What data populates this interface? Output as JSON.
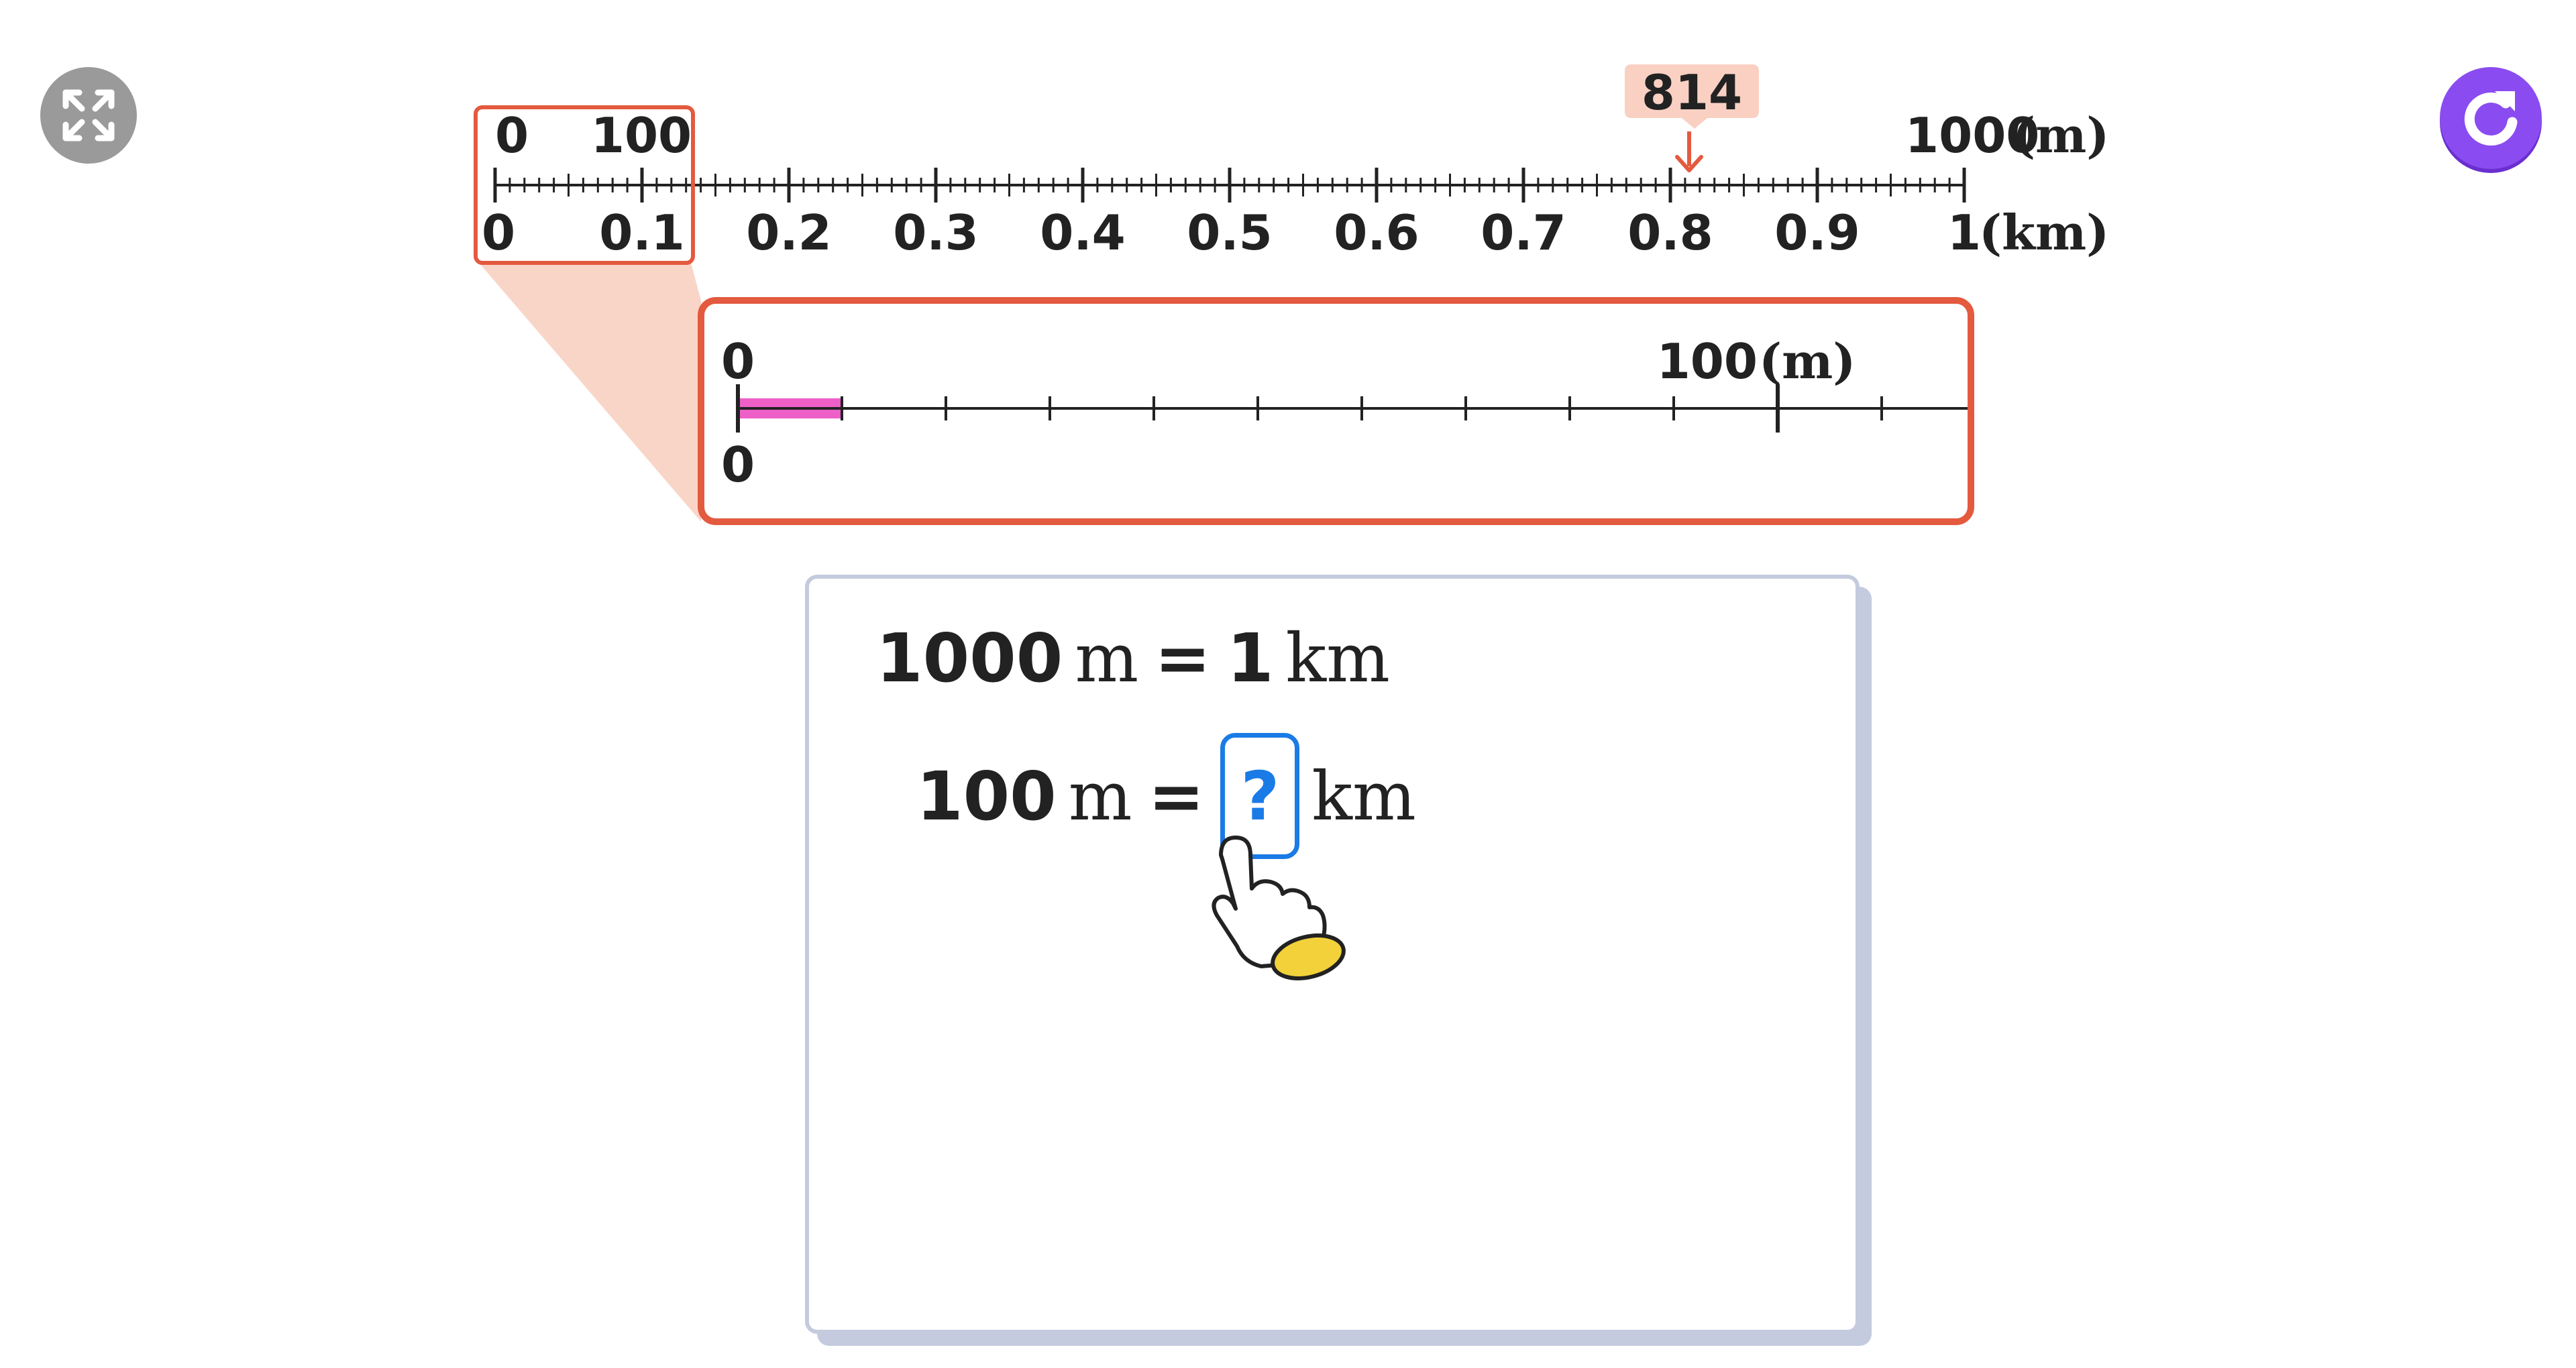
{
  "toolbar": {
    "expand_icon": "expand-icon",
    "refresh_icon": "refresh-icon"
  },
  "main_ruler": {
    "m_start": "0",
    "m_tick_label": "100",
    "m_end": "1000",
    "m_unit": "(m)",
    "km_labels": [
      "0",
      "0.1",
      "0.2",
      "0.3",
      "0.4",
      "0.5",
      "0.6",
      "0.7",
      "0.8",
      "0.9",
      "1"
    ],
    "km_unit": "(km)",
    "marker_value": "814"
  },
  "zoom_ruler": {
    "top_start": "0",
    "top_end": "100",
    "top_unit": "(m)",
    "bottom_start": "0",
    "highlight_fraction": 0.1
  },
  "equations": {
    "line1": {
      "left_num": "1000",
      "left_unit": "m",
      "op": "=",
      "right_num": "1",
      "right_unit": "km"
    },
    "line2": {
      "left_num": "100",
      "left_unit": "m",
      "op": "=",
      "blank": "?",
      "right_unit": "km"
    }
  },
  "colors": {
    "accent_red": "#e35a3f",
    "zoom_fill": "#f9d5c8",
    "highlight_pink": "#ee5fc8",
    "answer_blue": "#1a7be6",
    "refresh_purple": "#8a4cf0",
    "hand_cuff_yellow": "#f2d13a"
  }
}
